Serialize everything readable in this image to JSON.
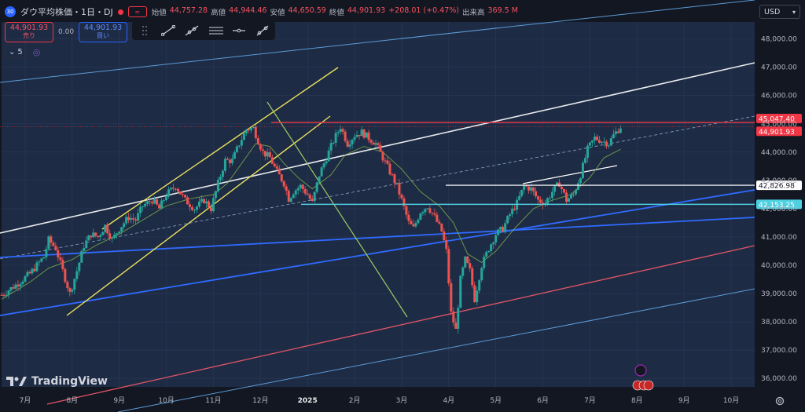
{
  "header": {
    "symbol_badge": "30",
    "title": "ダウ平均株価・1日・DJ",
    "ohlc": [
      {
        "label": "始値",
        "value": "44,757.28"
      },
      {
        "label": "高値",
        "value": "44,944.46"
      },
      {
        "label": "安値",
        "value": "44,650.59"
      },
      {
        "label": "終値",
        "value": "44,901.93"
      },
      {
        "label": "",
        "value": "+208.01 (+0.47%)"
      },
      {
        "label": "出来高",
        "value": "369.5 M"
      }
    ]
  },
  "trade": {
    "sell_price": "44,901.93",
    "sell_label": "売り",
    "spread": "0.00",
    "buy_price": "44,901.93",
    "buy_label": "買い"
  },
  "indicator": {
    "count": "5"
  },
  "currency": {
    "label": "USD"
  },
  "logo": {
    "text": "TradingView"
  },
  "colors": {
    "background": "#1e2b45",
    "up": "#26a69a",
    "down": "#ef5350",
    "accent": "#2962ff"
  },
  "chart_data": {
    "type": "candlestick",
    "y_ticks": [
      36000,
      37000,
      38000,
      39000,
      40000,
      41000,
      42000,
      43000,
      44000,
      45000,
      46000,
      47000,
      48000
    ],
    "y_tick_labels": [
      "36,000.00",
      "37,000.00",
      "38,000.00",
      "39,000.00",
      "40,000.00",
      "41,000.00",
      "42,000.00",
      "43,000.00",
      "44,000.00",
      "45,000.00",
      "46,000.00",
      "47,000.00",
      "48,000.00"
    ],
    "ylim": [
      35700,
      48600
    ],
    "x_ticks": [
      {
        "label": "7月",
        "t": 0.5
      },
      {
        "label": "8月",
        "t": 1.5
      },
      {
        "label": "9月",
        "t": 2.5
      },
      {
        "label": "10月",
        "t": 3.5
      },
      {
        "label": "11月",
        "t": 4.5
      },
      {
        "label": "12月",
        "t": 5.5
      },
      {
        "label": "2025",
        "t": 6.5,
        "bold": true
      },
      {
        "label": "2月",
        "t": 7.5
      },
      {
        "label": "3月",
        "t": 8.5
      },
      {
        "label": "4月",
        "t": 9.5
      },
      {
        "label": "5月",
        "t": 10.5
      },
      {
        "label": "6月",
        "t": 11.5
      },
      {
        "label": "7月",
        "t": 12.5
      },
      {
        "label": "8月",
        "t": 13.5
      },
      {
        "label": "9月",
        "t": 14.5
      },
      {
        "label": "10月",
        "t": 15.5
      }
    ],
    "xlim": [
      0,
      16
    ],
    "price_path": [
      [
        0.0,
        38950
      ],
      [
        0.3,
        39300
      ],
      [
        0.6,
        39700
      ],
      [
        0.9,
        40300
      ],
      [
        1.0,
        40900
      ],
      [
        1.15,
        40600
      ],
      [
        1.3,
        39800
      ],
      [
        1.45,
        39000
      ],
      [
        1.6,
        39800
      ],
      [
        1.75,
        40700
      ],
      [
        1.9,
        41100
      ],
      [
        2.05,
        41000
      ],
      [
        2.2,
        41400
      ],
      [
        2.35,
        40900
      ],
      [
        2.5,
        41300
      ],
      [
        2.7,
        41700
      ],
      [
        2.85,
        41600
      ],
      [
        3.0,
        42100
      ],
      [
        3.2,
        42300
      ],
      [
        3.35,
        42000
      ],
      [
        3.5,
        42500
      ],
      [
        3.7,
        42800
      ],
      [
        3.9,
        42300
      ],
      [
        4.1,
        42000
      ],
      [
        4.3,
        42300
      ],
      [
        4.45,
        42000
      ],
      [
        4.6,
        42900
      ],
      [
        4.75,
        43700
      ],
      [
        4.9,
        43700
      ],
      [
        5.05,
        44300
      ],
      [
        5.2,
        44800
      ],
      [
        5.35,
        44850
      ],
      [
        5.45,
        44400
      ],
      [
        5.55,
        44000
      ],
      [
        5.7,
        43800
      ],
      [
        5.85,
        43300
      ],
      [
        6.0,
        42900
      ],
      [
        6.1,
        42350
      ],
      [
        6.2,
        42600
      ],
      [
        6.35,
        42800
      ],
      [
        6.5,
        42500
      ],
      [
        6.6,
        42200
      ],
      [
        6.75,
        43200
      ],
      [
        6.9,
        43800
      ],
      [
        7.05,
        44400
      ],
      [
        7.2,
        44900
      ],
      [
        7.35,
        44300
      ],
      [
        7.5,
        44600
      ],
      [
        7.65,
        44700
      ],
      [
        7.8,
        44500
      ],
      [
        7.95,
        44300
      ],
      [
        8.1,
        43800
      ],
      [
        8.25,
        43300
      ],
      [
        8.4,
        42800
      ],
      [
        8.5,
        42300
      ],
      [
        8.65,
        41500
      ],
      [
        8.75,
        41300
      ],
      [
        8.9,
        41900
      ],
      [
        9.05,
        42100
      ],
      [
        9.2,
        41700
      ],
      [
        9.35,
        41200
      ],
      [
        9.45,
        40500
      ],
      [
        9.55,
        38300
      ],
      [
        9.65,
        37700
      ],
      [
        9.75,
        39500
      ],
      [
        9.85,
        40200
      ],
      [
        9.95,
        39800
      ],
      [
        10.05,
        38800
      ],
      [
        10.2,
        40000
      ],
      [
        10.35,
        40600
      ],
      [
        10.5,
        41100
      ],
      [
        10.65,
        41300
      ],
      [
        10.8,
        41800
      ],
      [
        10.95,
        42200
      ],
      [
        11.1,
        42800
      ],
      [
        11.25,
        42700
      ],
      [
        11.4,
        42300
      ],
      [
        11.55,
        42200
      ],
      [
        11.7,
        42600
      ],
      [
        11.85,
        42900
      ],
      [
        12.0,
        42300
      ],
      [
        12.15,
        42500
      ],
      [
        12.3,
        43200
      ],
      [
        12.45,
        44100
      ],
      [
        12.6,
        44500
      ],
      [
        12.75,
        44400
      ],
      [
        12.9,
        44300
      ],
      [
        13.0,
        44600
      ],
      [
        13.15,
        44900
      ]
    ],
    "ma_path": [
      [
        0.0,
        38800
      ],
      [
        0.6,
        39400
      ],
      [
        1.0,
        39900
      ],
      [
        1.5,
        40200
      ],
      [
        2.0,
        40700
      ],
      [
        2.5,
        41100
      ],
      [
        3.0,
        41600
      ],
      [
        3.5,
        42100
      ],
      [
        4.0,
        42350
      ],
      [
        4.5,
        42500
      ],
      [
        4.8,
        42900
      ],
      [
        5.1,
        43600
      ],
      [
        5.4,
        44300
      ],
      [
        5.7,
        44200
      ],
      [
        6.0,
        43600
      ],
      [
        6.3,
        43100
      ],
      [
        6.6,
        42700
      ],
      [
        7.0,
        43200
      ],
      [
        7.3,
        43900
      ],
      [
        7.7,
        44200
      ],
      [
        8.1,
        44000
      ],
      [
        8.5,
        43400
      ],
      [
        8.9,
        42600
      ],
      [
        9.3,
        42100
      ],
      [
        9.6,
        41500
      ],
      [
        9.9,
        40400
      ],
      [
        10.2,
        40100
      ],
      [
        10.5,
        40500
      ],
      [
        10.9,
        41300
      ],
      [
        11.3,
        42000
      ],
      [
        11.7,
        42300
      ],
      [
        12.1,
        42500
      ],
      [
        12.5,
        43100
      ],
      [
        12.8,
        43800
      ],
      [
        13.15,
        44100
      ]
    ],
    "h_levels": [
      {
        "value": 45047.4,
        "label": "45,047.40",
        "color": "#f23645"
      },
      {
        "value": 44901.93,
        "label": "44,901.93",
        "color": "#f23645"
      },
      {
        "value": 42826.98,
        "label": "42,826.98",
        "color": "#ffffff"
      },
      {
        "value": 42153.25,
        "label": "42,153.25",
        "color": "#4dd0e1"
      }
    ]
  }
}
